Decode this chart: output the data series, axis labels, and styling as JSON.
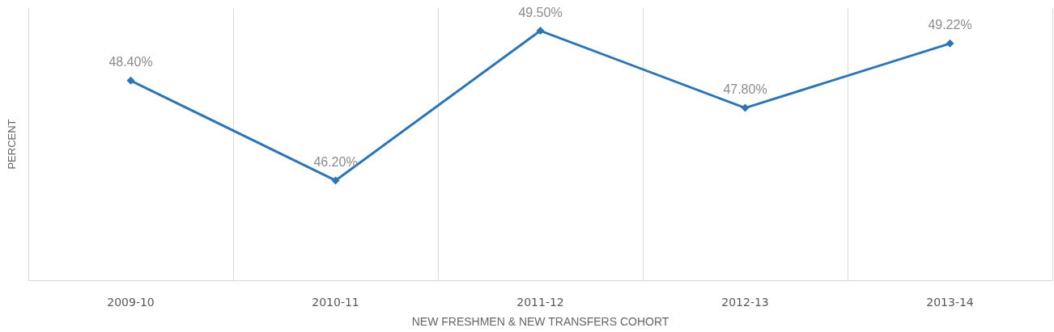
{
  "chart_data": {
    "type": "line",
    "xlabel": "NEW FRESHMEN & NEW TRANSFERS COHORT",
    "ylabel": "PERCENT",
    "categories": [
      "2009-10",
      "2010-11",
      "2011-12",
      "2012-13",
      "2013-14"
    ],
    "series": [
      {
        "color": "#2e75b6",
        "values": [
          48.4,
          46.2,
          49.5,
          47.8,
          49.22
        ],
        "value_labels": [
          "48.40%",
          "46.20%",
          "49.50%",
          "47.80%",
          "49.22%"
        ]
      }
    ],
    "ylim": [
      44,
      50
    ],
    "tick_labels": "x",
    "grid": "x",
    "marker": "diamond",
    "line_style": "solid"
  }
}
